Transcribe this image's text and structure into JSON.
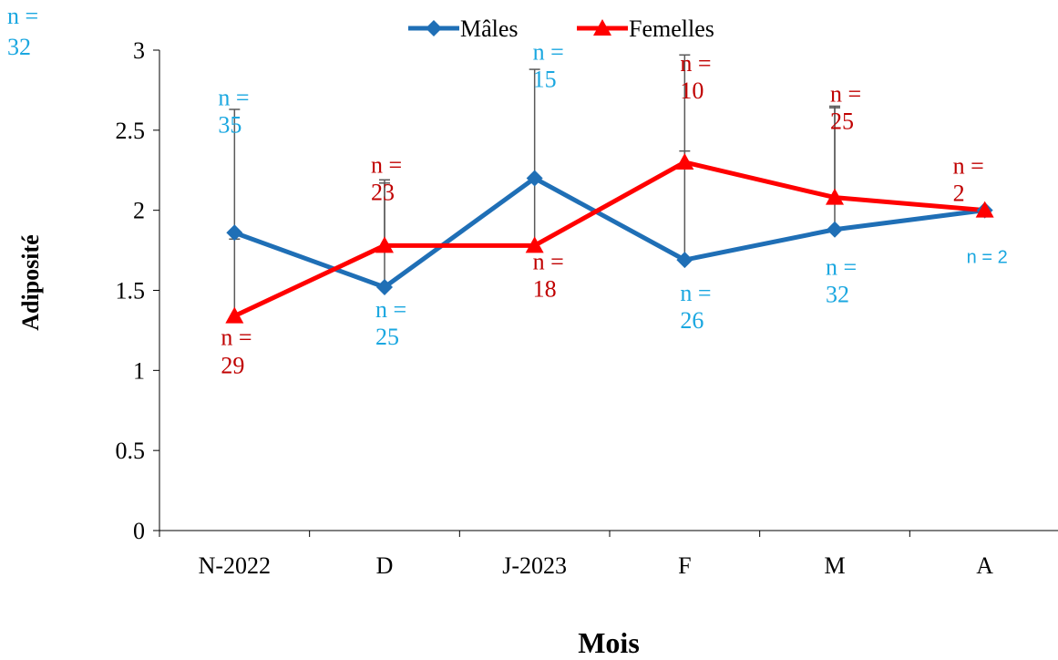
{
  "colors": {
    "males": "#1f6fb6",
    "females": "#ff0000",
    "male_label": "#1aa7e0",
    "female_label": "#c00000",
    "error_bar": "#595959",
    "axis": "#000000"
  },
  "chart_data": {
    "type": "line",
    "xlabel": "Mois",
    "ylabel": "Adiposité",
    "ylim": [
      0,
      3
    ],
    "yticks": [
      "0",
      "0.5",
      "1",
      "1.5",
      "2",
      "2.5",
      "3"
    ],
    "categories": [
      "N-2022",
      "D",
      "J-2023",
      "F",
      "M",
      "A"
    ],
    "legend_position": "top",
    "grid": false,
    "series": [
      {
        "name": "Mâles",
        "marker": "diamond",
        "values": [
          1.86,
          1.52,
          2.2,
          1.69,
          1.88,
          2.0
        ],
        "error_upper": [
          2.63,
          2.17,
          2.88,
          2.97,
          2.64,
          null
        ],
        "counts": [
          "n = 35",
          "n = 25",
          "n = 15",
          "n = 26",
          "n = 32",
          "n = 2"
        ]
      },
      {
        "name": "Femelles",
        "marker": "triangle",
        "values": [
          1.34,
          1.78,
          1.78,
          2.3,
          2.08,
          2.0
        ],
        "error_upper": [
          1.82,
          2.19,
          2.19,
          2.37,
          2.65,
          null
        ],
        "counts": [
          "n = 29",
          "n = 23",
          "n = 18",
          "n = 10",
          "n = 25",
          "n = 2"
        ]
      }
    ],
    "stray_annotation": "n = 32"
  }
}
